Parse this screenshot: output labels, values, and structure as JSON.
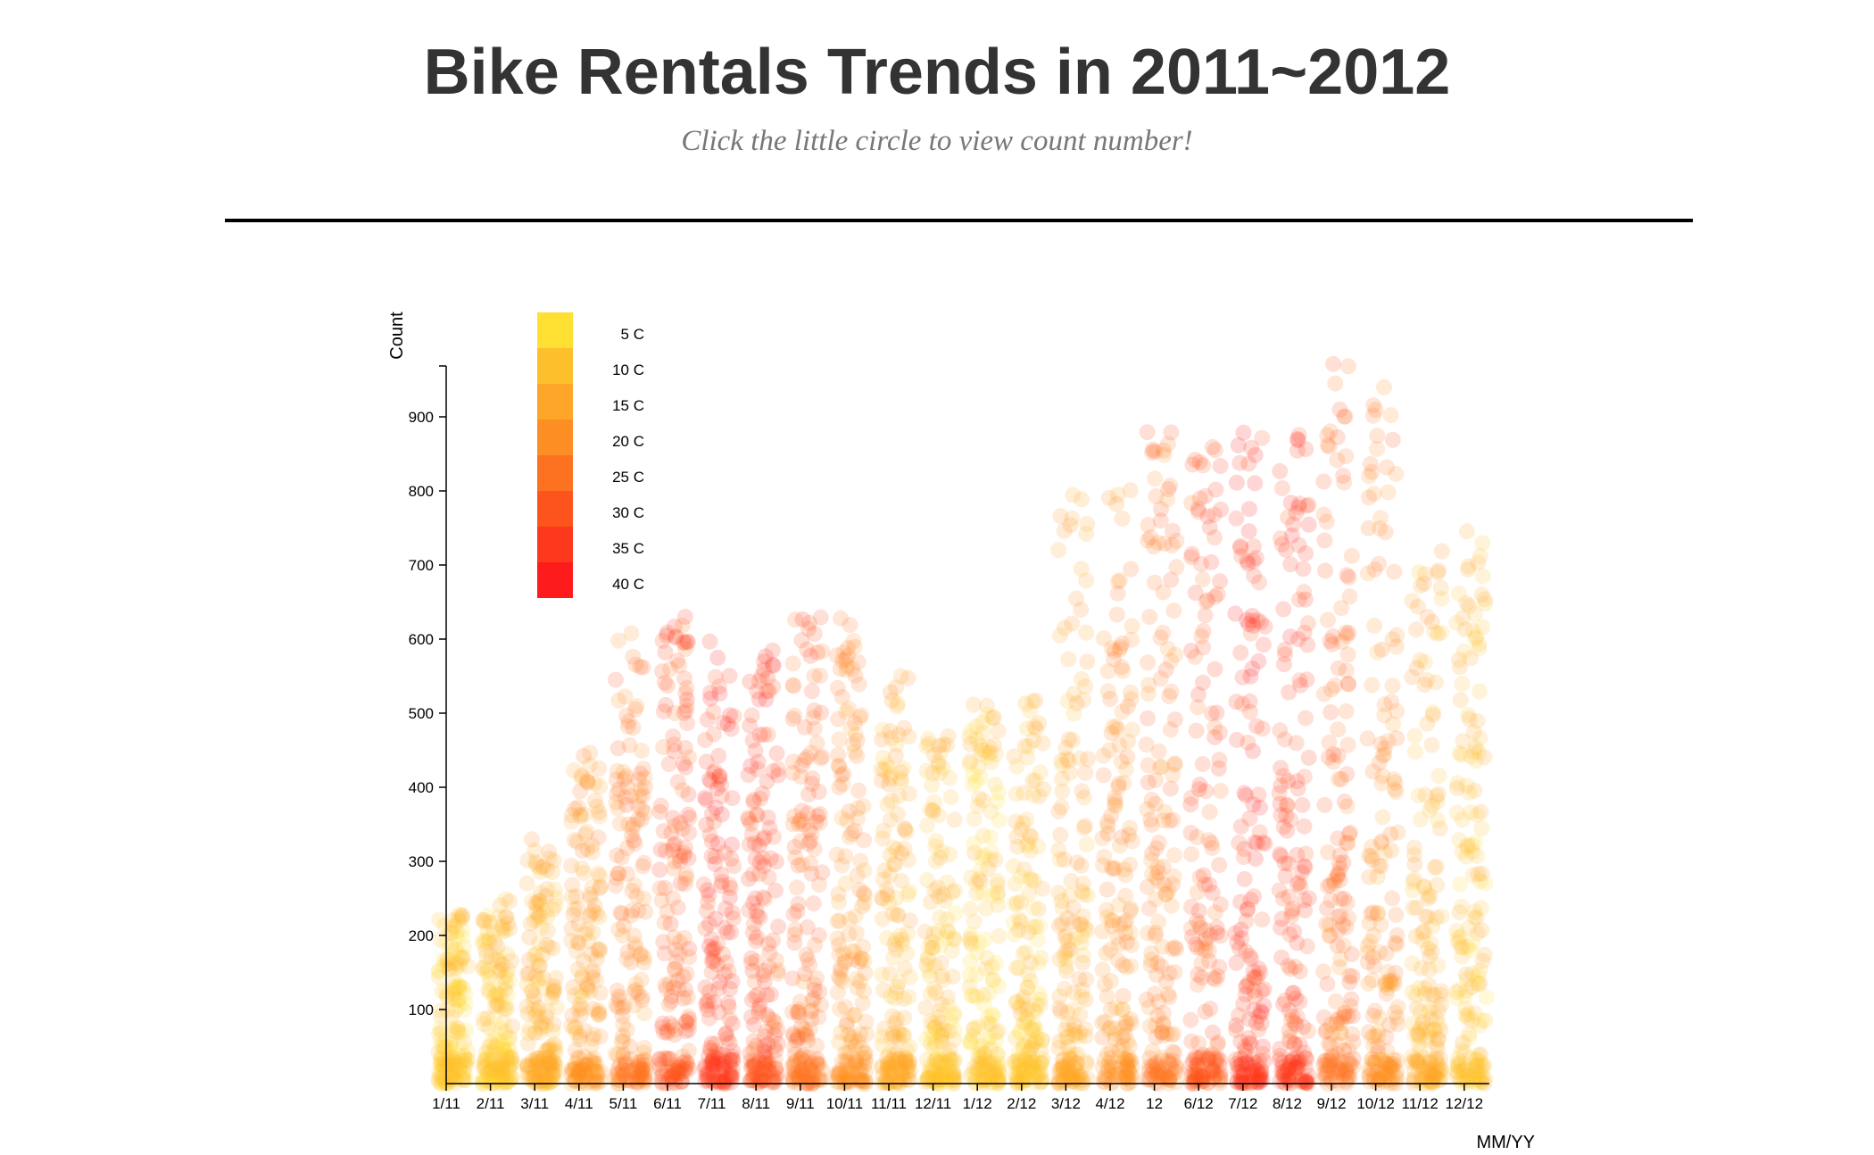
{
  "header": {
    "title": "Bike Rentals Trends in 2011~2012",
    "subtitle": "Click the little circle to view count number!"
  },
  "chart_data": {
    "type": "scatter",
    "title": "Bike Rentals Trends in 2011~2012",
    "xlabel": "MM/YY",
    "ylabel": "Count",
    "ylim": [
      0,
      980
    ],
    "yticks": [
      100,
      200,
      300,
      400,
      500,
      600,
      700,
      800,
      900
    ],
    "categories": [
      "1/11",
      "2/11",
      "3/11",
      "4/11",
      "5/11",
      "6/11",
      "7/11",
      "8/11",
      "9/11",
      "10/11",
      "11/11",
      "12/11",
      "1/12",
      "2/12",
      "3/12",
      "4/12",
      "12",
      "6/12",
      "7/12",
      "8/12",
      "9/12",
      "10/12",
      "11/12",
      "12/12"
    ],
    "monthly_max_count": [
      230,
      250,
      330,
      450,
      610,
      640,
      600,
      590,
      630,
      630,
      560,
      470,
      520,
      530,
      800,
      820,
      880,
      870,
      880,
      900,
      980,
      950,
      720,
      760
    ],
    "monthly_typical_temp_c": [
      8,
      10,
      14,
      18,
      23,
      30,
      34,
      32,
      27,
      20,
      14,
      11,
      9,
      11,
      16,
      20,
      24,
      30,
      35,
      33,
      27,
      21,
      14,
      12
    ],
    "color_legend": {
      "labels": [
        "5 C",
        "10 C",
        "15 C",
        "20 C",
        "25 C",
        "30 C",
        "35 C",
        "40 C"
      ],
      "colors": [
        "#FDE031",
        "#FDC02C",
        "#FDA627",
        "#FD8E23",
        "#FD7220",
        "#FD541D",
        "#FD381C",
        "#FD1B1C"
      ]
    },
    "marker_opacity": 0.18,
    "grid": false
  }
}
